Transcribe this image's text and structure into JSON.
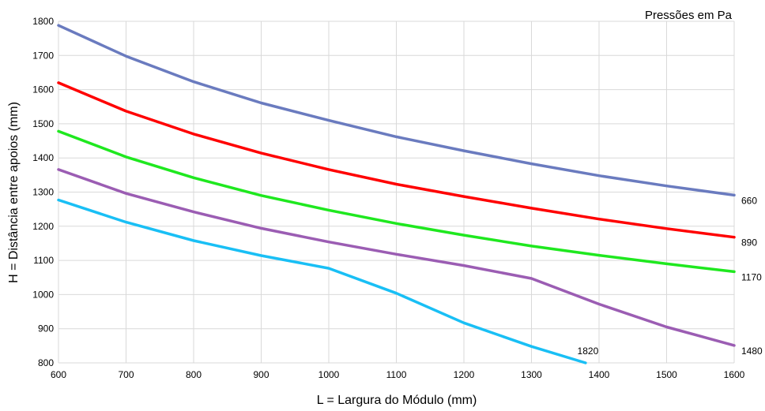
{
  "chart_data": {
    "type": "line",
    "annotation": "Pressões em Pa",
    "xlabel": "L = Largura do Módulo (mm)",
    "ylabel": "H = Distância entre apoios (mm)",
    "xlim": [
      600,
      1600
    ],
    "ylim": [
      800,
      1800
    ],
    "x_ticks": [
      600,
      700,
      800,
      900,
      1000,
      1100,
      1200,
      1300,
      1400,
      1500,
      1600
    ],
    "y_ticks": [
      800,
      900,
      1000,
      1100,
      1200,
      1300,
      1400,
      1500,
      1600,
      1700,
      1800
    ],
    "grid": true,
    "series": [
      {
        "name": "660",
        "color": "#6a7bbf",
        "x": [
          600,
          700,
          800,
          900,
          1000,
          1100,
          1200,
          1300,
          1400,
          1500,
          1600
        ],
        "y": [
          1788,
          1698,
          1623,
          1561,
          1510,
          1462,
          1421,
          1383,
          1348,
          1318,
          1291
        ]
      },
      {
        "name": "890",
        "color": "#ff0000",
        "x": [
          600,
          700,
          800,
          900,
          1000,
          1100,
          1200,
          1300,
          1400,
          1500,
          1600
        ],
        "y": [
          1620,
          1537,
          1470,
          1414,
          1366,
          1323,
          1287,
          1253,
          1221,
          1193,
          1168
        ]
      },
      {
        "name": "1170",
        "color": "#1fe81f",
        "x": [
          600,
          700,
          800,
          900,
          1000,
          1100,
          1200,
          1300,
          1400,
          1500,
          1600
        ],
        "y": [
          1478,
          1403,
          1342,
          1290,
          1247,
          1208,
          1174,
          1142,
          1115,
          1090,
          1067
        ]
      },
      {
        "name": "1480",
        "color": "#9b5db3",
        "x": [
          600,
          700,
          800,
          900,
          1000,
          1100,
          1200,
          1300,
          1400,
          1500,
          1600
        ],
        "y": [
          1366,
          1296,
          1242,
          1194,
          1154,
          1118,
          1085,
          1047,
          972,
          905,
          851
        ]
      },
      {
        "name": "1820",
        "color": "#19bff5",
        "x": [
          600,
          700,
          800,
          900,
          1000,
          1100,
          1200,
          1300,
          1380
        ],
        "y": [
          1277,
          1212,
          1158,
          1114,
          1077,
          1004,
          917,
          848,
          800
        ]
      }
    ]
  }
}
